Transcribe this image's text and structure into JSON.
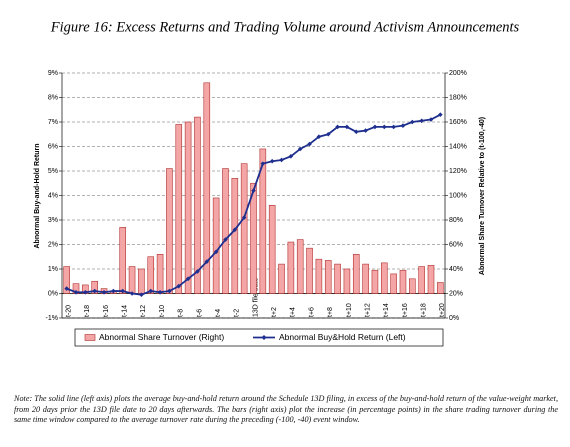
{
  "chart_data": {
    "type": "combo",
    "title": "Figure 16: Excess Returns and Trading Volume around Activism Announcements",
    "ylabel": "Abnormal Buy-and-Hold Return",
    "y2label": "Abnormal Share Turnover Relative to (t-100,-40)",
    "categories": [
      "t-20",
      null,
      "t-18",
      null,
      "t-16",
      null,
      "t-14",
      null,
      "t-12",
      null,
      "t-10",
      null,
      "t-8",
      null,
      "t-6",
      null,
      "t-4",
      null,
      "t-2",
      null,
      "13D file date",
      null,
      "t+2",
      null,
      "t+4",
      null,
      "t+6",
      null,
      "t+8",
      null,
      "t+10",
      null,
      "t+12",
      null,
      "t+14",
      null,
      "t+16",
      null,
      "t+18",
      null,
      "t+20"
    ],
    "ylim": [
      -1,
      9
    ],
    "yticks": [
      {
        "value": -1,
        "label": "-1%"
      },
      {
        "value": 0,
        "label": "0%"
      },
      {
        "value": 1,
        "label": "1%"
      },
      {
        "value": 2,
        "label": "2%"
      },
      {
        "value": 3,
        "label": "3%"
      },
      {
        "value": 4,
        "label": "4%"
      },
      {
        "value": 5,
        "label": "5%"
      },
      {
        "value": 6,
        "label": "6%"
      },
      {
        "value": 7,
        "label": "7%"
      },
      {
        "value": 8,
        "label": "8%"
      },
      {
        "value": 9,
        "label": "9%"
      }
    ],
    "y2lim": [
      0,
      200
    ],
    "y2ticks": [
      {
        "value": 0,
        "label": "0%"
      },
      {
        "value": 20,
        "label": "20%"
      },
      {
        "value": 40,
        "label": "40%"
      },
      {
        "value": 60,
        "label": "60%"
      },
      {
        "value": 80,
        "label": "80%"
      },
      {
        "value": 100,
        "label": "100%"
      },
      {
        "value": 120,
        "label": "120%"
      },
      {
        "value": 140,
        "label": "140%"
      },
      {
        "value": 160,
        "label": "160%"
      },
      {
        "value": 180,
        "label": "180%"
      },
      {
        "value": 200,
        "label": "200%"
      }
    ],
    "grid": true,
    "legend": "bottom",
    "series": [
      {
        "name": "Abnormal Share Turnover (Right)",
        "type": "bar",
        "axis": "y2",
        "color": "#f4a6a6",
        "values": [
          42,
          28,
          27,
          30,
          24,
          22,
          74,
          42,
          40,
          50,
          52,
          122,
          158,
          160,
          164,
          192,
          98,
          122,
          114,
          126,
          110,
          138,
          92,
          44,
          62,
          64,
          57,
          48,
          47,
          44,
          40,
          52,
          44,
          39,
          45,
          36,
          39,
          32,
          42,
          43,
          29
        ]
      },
      {
        "name": "Abnormal Buy&Hold Return (Left)",
        "type": "line",
        "axis": "y",
        "color": "#1f2f8f",
        "values": [
          0.2,
          0.05,
          0.05,
          0.1,
          0.05,
          0.1,
          0.1,
          0.0,
          -0.05,
          0.1,
          0.05,
          0.1,
          0.3,
          0.6,
          0.9,
          1.3,
          1.7,
          2.2,
          2.6,
          3.1,
          4.2,
          5.3,
          5.4,
          5.45,
          5.6,
          5.9,
          6.1,
          6.4,
          6.5,
          6.8,
          6.8,
          6.6,
          6.65,
          6.8,
          6.8,
          6.8,
          6.85,
          7.0,
          7.05,
          7.1,
          7.3
        ]
      }
    ],
    "note": "Note: The solid line (left axis) plots the average buy-and-hold return around the Schedule 13D filing, in excess of the buy-and-hold return of the value-weight market, from 20 days prior the 13D file date to 20 days afterwards. The bars (right axis) plot the increase (in percentage points) in the share trading turnover during the same time window compared to the average turnover rate during the preceding (-100, -40) event window."
  }
}
